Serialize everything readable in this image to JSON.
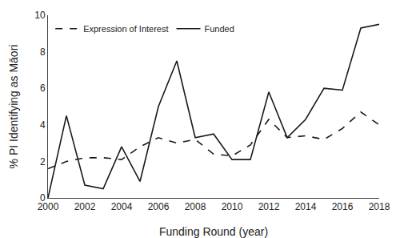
{
  "chart_data": {
    "type": "line",
    "xlabel": "Funding Round (year)",
    "ylabel": "% PI Identifying as Māori",
    "x": [
      2000,
      2001,
      2002,
      2003,
      2004,
      2005,
      2006,
      2007,
      2008,
      2009,
      2010,
      2011,
      2012,
      2013,
      2014,
      2015,
      2016,
      2017,
      2018
    ],
    "series": [
      {
        "name": "Expression of Interest",
        "color": "#1a1a1a",
        "line_style": "dashed",
        "values": [
          1.6,
          2.0,
          2.2,
          2.2,
          2.1,
          2.8,
          3.3,
          3.0,
          3.2,
          2.4,
          2.3,
          2.9,
          4.3,
          3.3,
          3.4,
          3.2,
          3.8,
          4.7,
          4.0
        ]
      },
      {
        "name": "Funded",
        "color": "#1a1a1a",
        "line_style": "solid",
        "values": [
          0.0,
          4.5,
          0.7,
          0.5,
          2.8,
          0.9,
          5.0,
          7.5,
          3.3,
          3.5,
          2.1,
          2.1,
          5.8,
          3.3,
          4.3,
          6.0,
          5.9,
          9.3,
          9.5
        ]
      }
    ],
    "xlim": [
      2000,
      2018
    ],
    "ylim": [
      0,
      10
    ],
    "xticks": [
      2000,
      2002,
      2004,
      2006,
      2008,
      2010,
      2012,
      2014,
      2016,
      2018
    ],
    "yticks": [
      0,
      2,
      4,
      6,
      8,
      10
    ],
    "grid": false,
    "legend": "upper left"
  }
}
